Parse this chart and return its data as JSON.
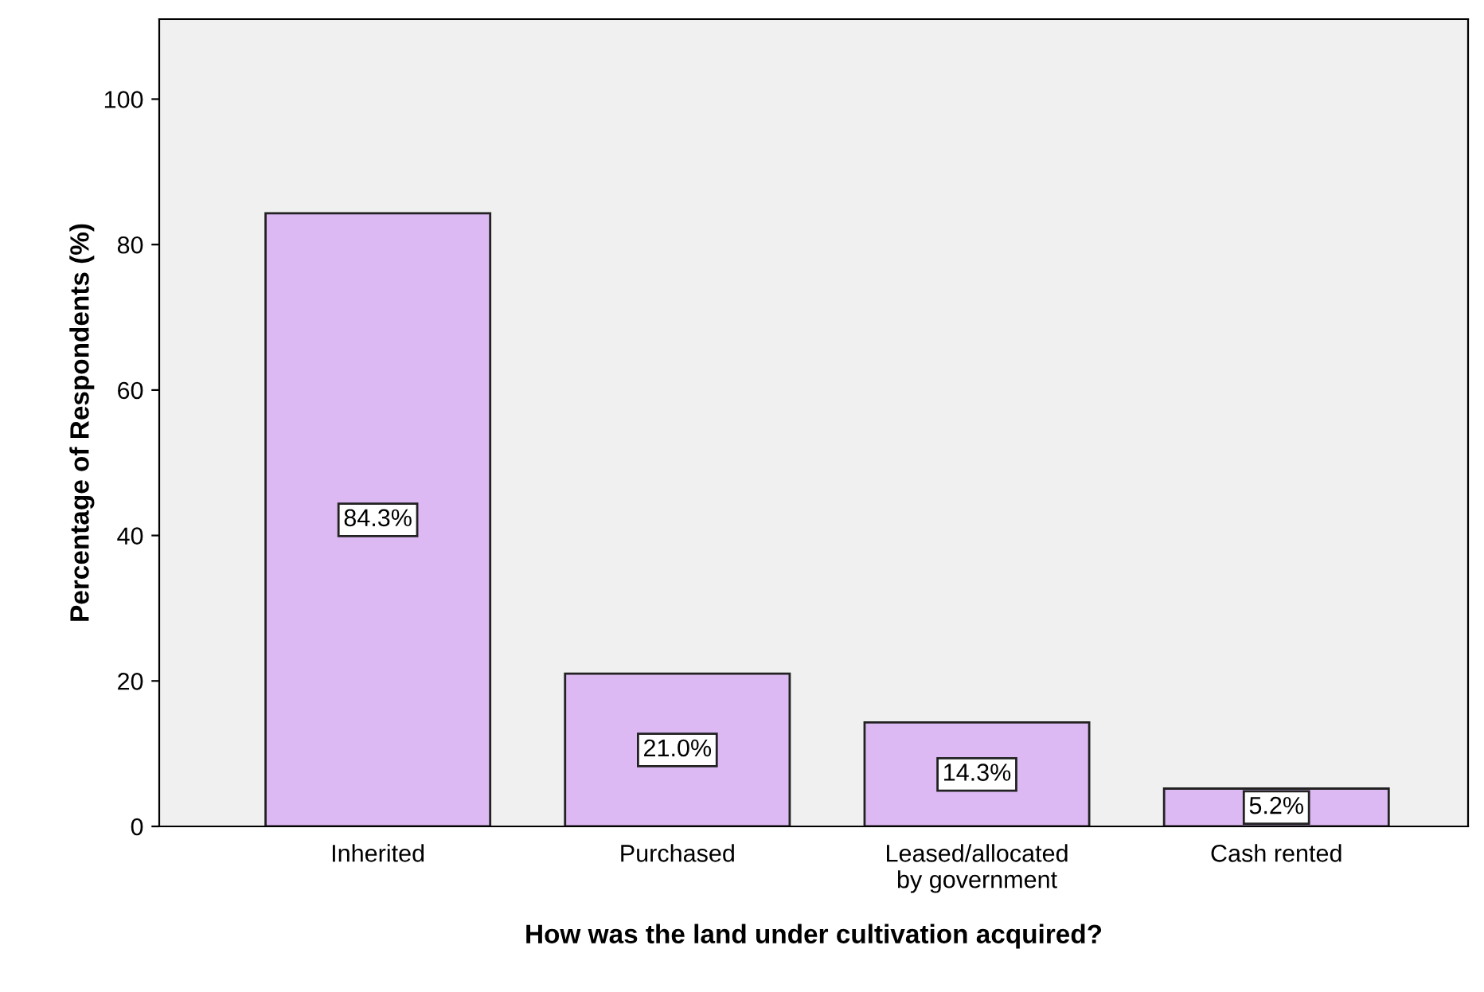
{
  "chart_data": {
    "type": "bar",
    "xlabel": "How was the land under cultivation acquired?",
    "ylabel": "Percentage of Respondents (%)",
    "categories": [
      "Inherited",
      "Purchased",
      "Leased/allocated\nby government",
      "Cash rented"
    ],
    "values": [
      84.3,
      21.0,
      14.3,
      5.2
    ],
    "value_labels": [
      "84.3%",
      "21.0%",
      "14.3%",
      "5.2%"
    ],
    "color": "#dcb9f2",
    "ylim": [
      0,
      111
    ],
    "yticks": [
      0,
      20,
      40,
      60,
      80,
      100
    ],
    "grid": false,
    "legend": false
  }
}
